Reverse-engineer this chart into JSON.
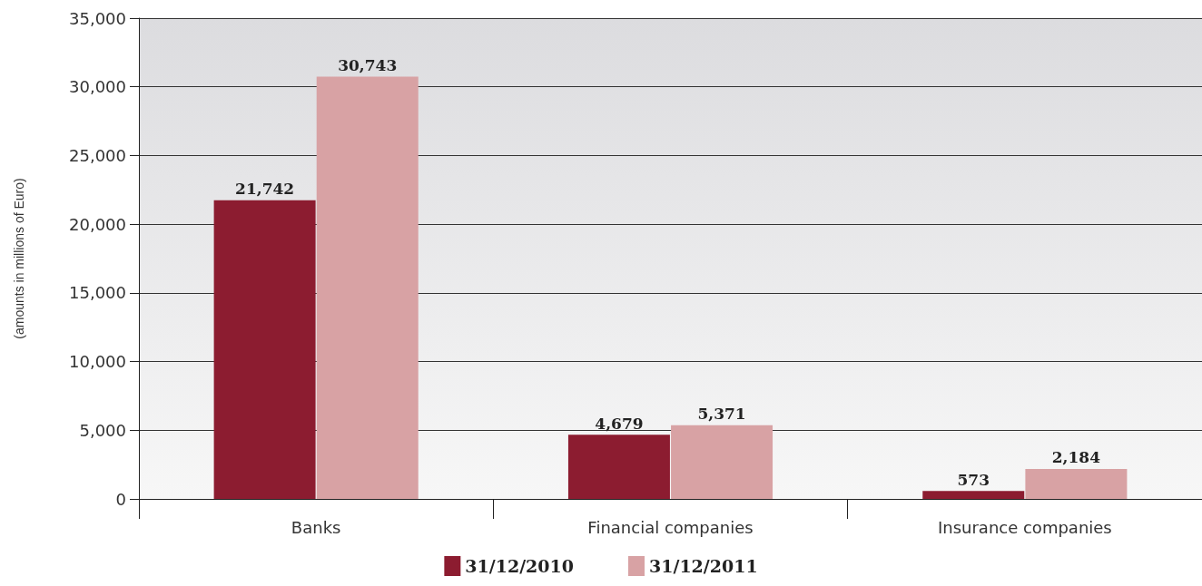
{
  "chart_data": {
    "type": "bar",
    "ylabel": "(amounts in millions of Euro)",
    "categories": [
      "Banks",
      "Financial companies",
      "Insurance companies"
    ],
    "series": [
      {
        "name": "31/12/2010",
        "color": "#8c1c30",
        "values": [
          21742,
          4679,
          573
        ],
        "value_labels": [
          "21,742",
          "4,679",
          "573"
        ]
      },
      {
        "name": "31/12/2011",
        "color": "#d8a2a4",
        "values": [
          30743,
          5371,
          2184
        ],
        "value_labels": [
          "30,743",
          "5,371",
          "2,184"
        ]
      }
    ],
    "ylim": [
      0,
      35000
    ],
    "yticks": [
      {
        "value": 0,
        "label": "0"
      },
      {
        "value": 5000,
        "label": "5,000"
      },
      {
        "value": 10000,
        "label": "10,000"
      },
      {
        "value": 15000,
        "label": "15,000"
      },
      {
        "value": 20000,
        "label": "20,000"
      },
      {
        "value": 25000,
        "label": "25,000"
      },
      {
        "value": 30000,
        "label": "30,000"
      },
      {
        "value": 35000,
        "label": "35,000"
      }
    ],
    "grid": "y",
    "legend": "bottom"
  }
}
